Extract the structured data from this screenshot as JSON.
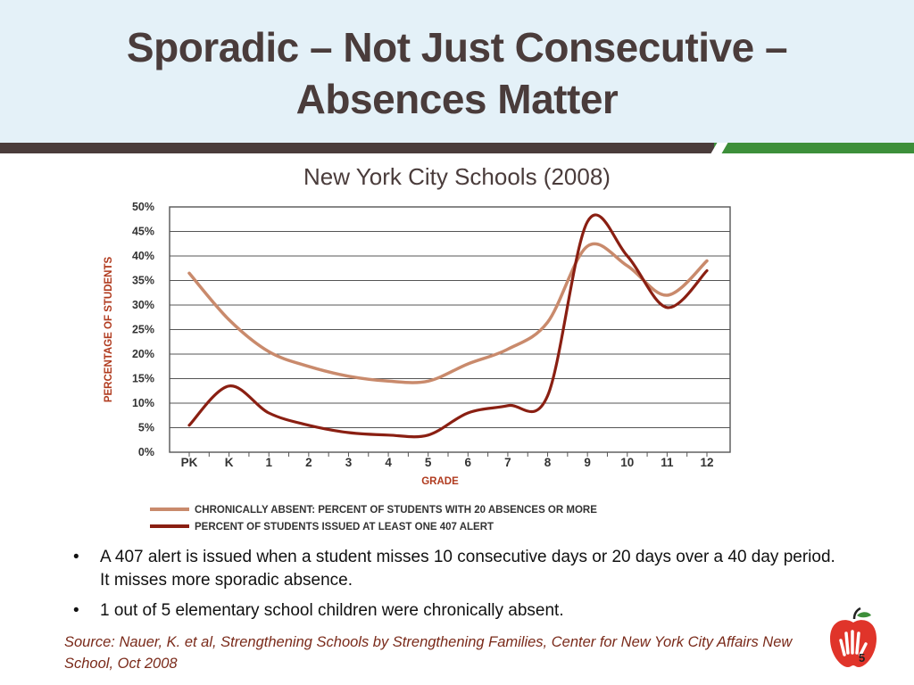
{
  "slide": {
    "title_line1": "Sporadic – Not Just Consecutive –",
    "title_line2": "Absences Matter",
    "subtitle": "New York City Schools (2008)",
    "bullets": [
      "A 407 alert is issued when a student misses 10 consecutive days or 20 days over a 40 day period.  It misses more sporadic absence.",
      "1 out of 5 elementary school children were chronically absent."
    ],
    "bullet_marker": "•",
    "source": "Source:  Nauer, K. et al, Strengthening Schools by Strengthening Families, Center for New York City Affairs New School, Oct 2008",
    "page_number": "5"
  },
  "colors": {
    "title": "#4a3c3b",
    "header_bg": "#e4f1f8",
    "rule_dark": "#4a3c3b",
    "rule_green": "#3d8f3a",
    "series_chronic": "#c98a6c",
    "series_alert": "#8a1f12",
    "axis_label": "#b03a1e",
    "source_text": "#7a2a1a",
    "logo_red": "#e0342a"
  },
  "chart_data": {
    "type": "line",
    "categories": [
      "PK",
      "K",
      "1",
      "2",
      "3",
      "4",
      "5",
      "6",
      "7",
      "8",
      "9",
      "10",
      "11",
      "12"
    ],
    "series": [
      {
        "name": "CHRONICALLY ABSENT: PERCENT OF STUDENTS WITH 20 ABSENCES OR MORE",
        "values": [
          36.5,
          27,
          20.5,
          17.5,
          15.5,
          14.5,
          14.5,
          18,
          21,
          26.5,
          42,
          38,
          32,
          39
        ]
      },
      {
        "name": "PERCENT OF STUDENTS ISSUED AT LEAST ONE 407 ALERT",
        "values": [
          5.5,
          13.5,
          8,
          5.5,
          4,
          3.5,
          3.5,
          8,
          9.5,
          11.5,
          47,
          40,
          29.5,
          37
        ]
      }
    ],
    "xlabel": "GRADE",
    "ylabel": "PERCENTAGE OF STUDENTS",
    "ylim": [
      0,
      50
    ],
    "yticks": [
      "0%",
      "5%",
      "10%",
      "15%",
      "20%",
      "25%",
      "30%",
      "35%",
      "40%",
      "45%",
      "50%"
    ],
    "grid": true,
    "legend_position": "bottom"
  }
}
